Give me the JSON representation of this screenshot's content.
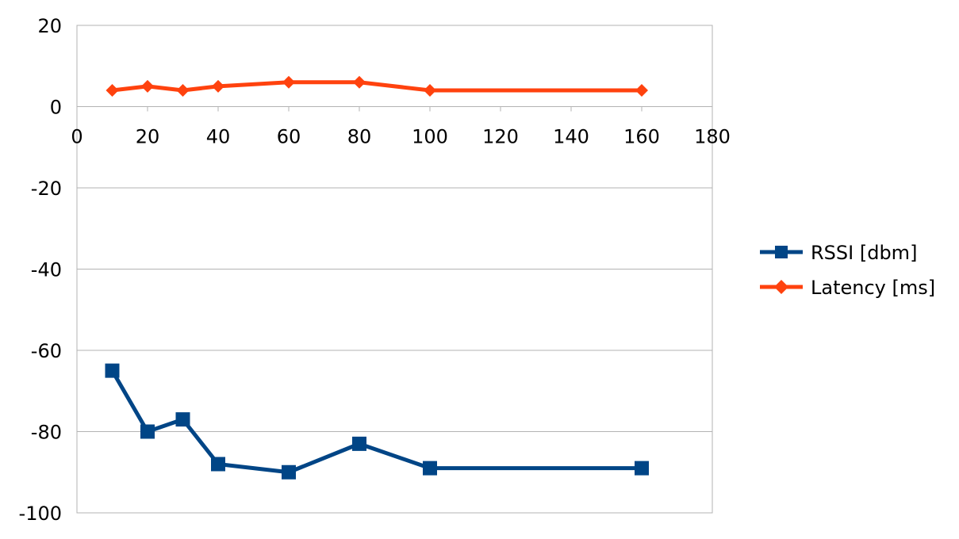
{
  "chart_data": {
    "type": "line",
    "title": "",
    "xlabel": "",
    "ylabel": "",
    "xlim": [
      0,
      180
    ],
    "ylim": [
      -100,
      20
    ],
    "x_ticks": [
      0,
      20,
      40,
      60,
      80,
      100,
      120,
      140,
      160,
      180
    ],
    "y_ticks": [
      20,
      0,
      -20,
      -40,
      -60,
      -80,
      -100
    ],
    "x_tick_labels": [
      "0",
      "20",
      "40",
      "60",
      "80",
      "100",
      "120",
      "140",
      "160",
      "180"
    ],
    "y_tick_labels": [
      "20",
      "0",
      "-20",
      "-40",
      "-60",
      "-80",
      "-100"
    ],
    "grid": true,
    "legend_position": "right",
    "x": [
      10,
      20,
      30,
      40,
      60,
      80,
      100,
      160
    ],
    "series": [
      {
        "name": "RSSI [dbm]",
        "color": "#004586",
        "marker": "square",
        "values": [
          -65,
          -80,
          -77,
          -88,
          -90,
          -83,
          -89,
          -89
        ]
      },
      {
        "name": "Latency [ms]",
        "color": "#ff420e",
        "marker": "diamond",
        "values": [
          4,
          5,
          4,
          5,
          6,
          6,
          4,
          4
        ]
      }
    ]
  }
}
